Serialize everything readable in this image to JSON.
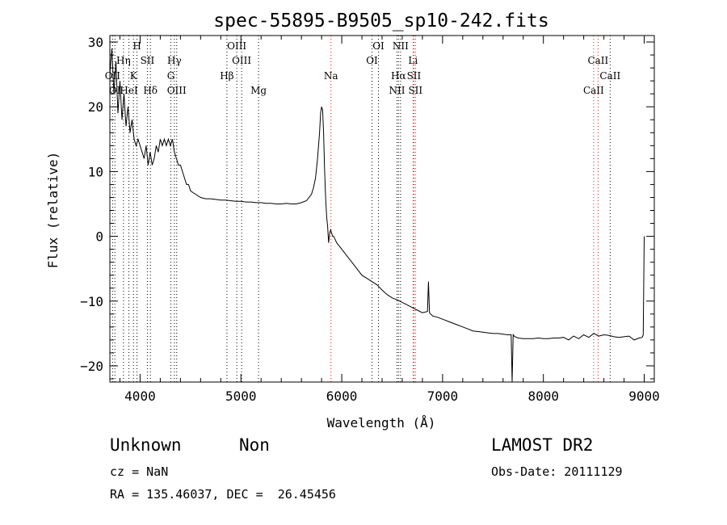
{
  "chart_data": {
    "type": "line",
    "title": "spec-55895-B9505_sp10-242.fits",
    "xlabel": "Wavelength (Å)",
    "ylabel": "Flux (relative)",
    "xlim": [
      3700,
      9100
    ],
    "ylim": [
      -22.5,
      31
    ],
    "xticks": [
      4000,
      5000,
      6000,
      7000,
      8000,
      9000
    ],
    "yticks": [
      -20,
      -10,
      0,
      10,
      20,
      30
    ],
    "grid": false,
    "series": [
      {
        "x": [
          3700,
          3720,
          3740,
          3760,
          3780,
          3800,
          3820,
          3840,
          3860,
          3880,
          3900,
          3920,
          3940,
          3960,
          3980,
          4000,
          4020,
          4040,
          4060,
          4080,
          4100,
          4120,
          4140,
          4160,
          4180,
          4200,
          4220,
          4240,
          4260,
          4280,
          4300,
          4320,
          4340,
          4360,
          4380,
          4400,
          4420,
          4440,
          4460,
          4480,
          4500,
          4550,
          4600,
          4650,
          4700,
          4750,
          4800,
          4850,
          4900,
          4950,
          5000,
          5050,
          5100,
          5150,
          5200,
          5250,
          5300,
          5350,
          5400,
          5450,
          5500,
          5550,
          5600,
          5650,
          5700,
          5720,
          5740,
          5760,
          5780,
          5790,
          5800,
          5810,
          5820,
          5830,
          5840,
          5850,
          5860,
          5870,
          5880,
          5890,
          5900,
          5910,
          5920,
          5950,
          6000,
          6050,
          6100,
          6150,
          6200,
          6250,
          6300,
          6350,
          6400,
          6450,
          6500,
          6550,
          6600,
          6650,
          6700,
          6750,
          6800,
          6850,
          6860,
          6870,
          6880,
          6890,
          6900,
          6950,
          7000,
          7050,
          7100,
          7150,
          7200,
          7250,
          7300,
          7350,
          7400,
          7450,
          7500,
          7550,
          7600,
          7650,
          7660,
          7670,
          7680,
          7690,
          7700,
          7710,
          7720,
          7750,
          7800,
          7850,
          7900,
          7950,
          8000,
          8050,
          8100,
          8150,
          8200,
          8250,
          8300,
          8350,
          8400,
          8450,
          8500,
          8550,
          8600,
          8650,
          8700,
          8750,
          8800,
          8850,
          8900,
          8950,
          8980,
          8990,
          9000
        ],
        "values": [
          25,
          29,
          22,
          27,
          19,
          24,
          18,
          22,
          17,
          20,
          16,
          18,
          15,
          14,
          15,
          14,
          13,
          12,
          14,
          11,
          13,
          11,
          12,
          14,
          13,
          15,
          14,
          15,
          14,
          15,
          14,
          15,
          13,
          12,
          11,
          11,
          10,
          9,
          8,
          8,
          7,
          6.5,
          6,
          5.8,
          5.8,
          5.7,
          5.6,
          5.6,
          5.5,
          5.4,
          5.4,
          5.3,
          5.3,
          5.2,
          5.2,
          5.1,
          5.1,
          5,
          5,
          5.1,
          5,
          5,
          5.2,
          5.5,
          6.5,
          7.5,
          9,
          12,
          16,
          19,
          20,
          19.5,
          16,
          10,
          6,
          3,
          1.5,
          -1,
          0.5,
          1,
          0.5,
          0,
          0,
          -1,
          -2,
          -3,
          -4,
          -5,
          -6,
          -6.5,
          -7,
          -7.5,
          -8.3,
          -9,
          -9.5,
          -9.8,
          -10.2,
          -10.6,
          -11,
          -11.4,
          -11.8,
          -11.6,
          -7,
          -11.8,
          -12,
          -12.1,
          -12.3,
          -12.5,
          -12.8,
          -13.1,
          -13.4,
          -13.7,
          -14,
          -14.3,
          -14.6,
          -14.7,
          -14.8,
          -14.9,
          -15,
          -15,
          -15.1,
          -15.2,
          -15.2,
          -15.2,
          -15.2,
          -22.5,
          -15.2,
          -15.4,
          -15.5,
          -15.7,
          -15.8,
          -15.8,
          -15.8,
          -15.7,
          -15.8,
          -15.8,
          -15.7,
          -15.7,
          -15.6,
          -16,
          -15.4,
          -15.8,
          -15.2,
          -15.6,
          -15,
          -15.4,
          -15.2,
          -15.3,
          -15.5,
          -15.6,
          -15.5,
          -15.4,
          -16,
          -15.7,
          -15.6,
          -15.2,
          0
        ]
      }
    ],
    "lines": [
      {
        "label": "OII",
        "x": 3727,
        "row": 2,
        "color": "#000000"
      },
      {
        "label": "OI",
        "x": 3750,
        "row": 3,
        "color": "#000000"
      },
      {
        "label": "Hη",
        "x": 3835,
        "row": 1,
        "color": "#000000"
      },
      {
        "label": "HeI",
        "x": 3889,
        "row": 3,
        "color": "#000000"
      },
      {
        "label": "K",
        "x": 3934,
        "row": 2,
        "color": "#000000"
      },
      {
        "label": "H",
        "x": 3969,
        "row": 0,
        "color": "#000000"
      },
      {
        "label": "SII",
        "x": 4072,
        "row": 1,
        "color": "#000000"
      },
      {
        "label": "Hδ",
        "x": 4102,
        "row": 3,
        "color": "#000000"
      },
      {
        "label": "G",
        "x": 4305,
        "row": 2,
        "color": "#000000"
      },
      {
        "label": "Hγ",
        "x": 4340,
        "row": 1,
        "color": "#000000"
      },
      {
        "label": "OIII",
        "x": 4363,
        "row": 3,
        "color": "#000000"
      },
      {
        "label": "Hβ",
        "x": 4861,
        "row": 2,
        "color": "#000000"
      },
      {
        "label": "OIII",
        "x": 4959,
        "row": 0,
        "color": "#000000"
      },
      {
        "label": "OIII",
        "x": 5007,
        "row": 1,
        "color": "#000000"
      },
      {
        "label": "Mg",
        "x": 5175,
        "row": 3,
        "color": "#000000"
      },
      {
        "label": "Na",
        "x": 5893,
        "row": 2,
        "color": "#ff0000"
      },
      {
        "label": "OI",
        "x": 6300,
        "row": 1,
        "color": "#000000"
      },
      {
        "label": "OI",
        "x": 6364,
        "row": 0,
        "color": "#000000"
      },
      {
        "label": "NII",
        "x": 6548,
        "row": 3,
        "color": "#000000"
      },
      {
        "label": "Hα",
        "x": 6563,
        "row": 2,
        "color": "#000000"
      },
      {
        "label": "NII",
        "x": 6583,
        "row": 0,
        "color": "#000000"
      },
      {
        "label": "Li",
        "x": 6707,
        "row": 1,
        "color": "#ff0000"
      },
      {
        "label": "SII",
        "x": 6716,
        "row": 2,
        "color": "#ff0000"
      },
      {
        "label": "SII",
        "x": 6731,
        "row": 3,
        "color": "#ff0000"
      },
      {
        "label": "CaII",
        "x": 8498,
        "row": 3,
        "color": "#ff0000"
      },
      {
        "label": "CaII",
        "x": 8542,
        "row": 1,
        "color": "#ff0000"
      },
      {
        "label": "CaII",
        "x": 8662,
        "row": 2,
        "color": "#000000"
      }
    ]
  },
  "info": {
    "class": "Unknown",
    "subclass": "Non",
    "survey": "LAMOST DR2",
    "cz": "cz = NaN",
    "obs_date": "Obs-Date: 20111129",
    "coords": "RA = 135.46037, DEC =  26.45456"
  }
}
